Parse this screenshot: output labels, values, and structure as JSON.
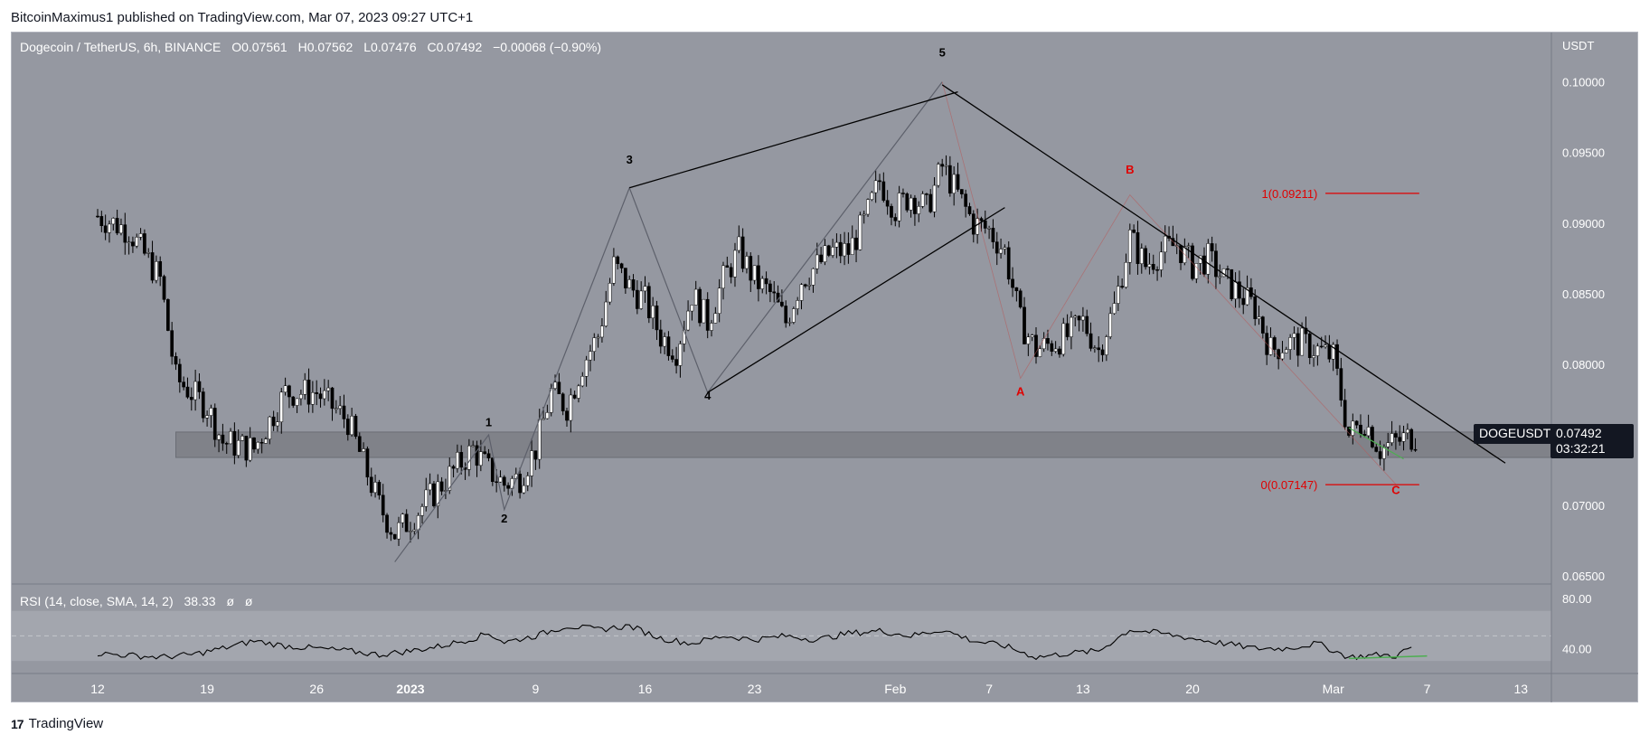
{
  "header": {
    "publisher_line": "BitcoinMaximus1 published on TradingView.com, Mar 07, 2023 09:27 UTC+1"
  },
  "legend": {
    "symbol": "Dogecoin / TetherUS, 6h, BINANCE",
    "o_label": "O",
    "o": "0.07561",
    "h_label": "H",
    "h": "0.07562",
    "l_label": "L",
    "l": "0.07476",
    "c_label": "C",
    "c": "0.07492",
    "change": "−0.00068 (−0.90%)"
  },
  "rsi_legend": {
    "label": "RSI (14, close, SMA, 14, 2)",
    "value": "38.33",
    "extra1": "ø",
    "extra2": "ø"
  },
  "price_tag": {
    "symbol": "DOGEUSDT",
    "price": "0.07492",
    "countdown": "03:32:21"
  },
  "footer": {
    "brand": "TradingView",
    "logo": "17"
  },
  "colors": {
    "background": "#9598a1",
    "bull": "#ffffff",
    "bear": "#000000",
    "red": "#e00000",
    "green": "#4caf50",
    "zone": "#808289"
  },
  "chart_data": {
    "type": "candlestick",
    "title": "Dogecoin / TetherUS, 6h, BINANCE",
    "y_axis_unit": "USDT",
    "ylim": [
      0.0645,
      0.1035
    ],
    "y_ticks": [
      "0.10000",
      "0.09500",
      "0.09000",
      "0.08500",
      "0.08000",
      "0.07500",
      "0.07000",
      "0.06500"
    ],
    "x_ticks": [
      {
        "label": "12",
        "day": -20
      },
      {
        "label": "19",
        "day": -13
      },
      {
        "label": "26",
        "day": -6
      },
      {
        "label": "2023",
        "day": 0
      },
      {
        "label": "9",
        "day": 8
      },
      {
        "label": "16",
        "day": 15
      },
      {
        "label": "23",
        "day": 22
      },
      {
        "label": "Feb",
        "day": 31
      },
      {
        "label": "7",
        "day": 37
      },
      {
        "label": "13",
        "day": 43
      },
      {
        "label": "20",
        "day": 50
      },
      {
        "label": "Mar",
        "day": 59
      },
      {
        "label": "7",
        "day": 65
      },
      {
        "label": "13",
        "day": 71
      }
    ],
    "price_path": [
      [
        -20,
        0.0905
      ],
      [
        -18,
        0.0895
      ],
      [
        -16,
        0.086
      ],
      [
        -15,
        0.079
      ],
      [
        -13,
        0.077
      ],
      [
        -12,
        0.0745
      ],
      [
        -10,
        0.074
      ],
      [
        -8,
        0.078
      ],
      [
        -6,
        0.078
      ],
      [
        -4,
        0.076
      ],
      [
        -3,
        0.073
      ],
      [
        -2,
        0.07
      ],
      [
        -1,
        0.068
      ],
      [
        0,
        0.069
      ],
      [
        2,
        0.0715
      ],
      [
        4,
        0.074
      ],
      [
        5,
        0.0725
      ],
      [
        6,
        0.0715
      ],
      [
        7,
        0.072
      ],
      [
        8,
        0.074
      ],
      [
        9,
        0.078
      ],
      [
        10,
        0.077
      ],
      [
        11,
        0.08
      ],
      [
        12,
        0.082
      ],
      [
        13,
        0.087
      ],
      [
        14,
        0.0855
      ],
      [
        15,
        0.0845
      ],
      [
        16,
        0.082
      ],
      [
        17,
        0.081
      ],
      [
        18,
        0.085
      ],
      [
        19,
        0.083
      ],
      [
        20,
        0.086
      ],
      [
        21,
        0.088
      ],
      [
        22,
        0.086
      ],
      [
        23,
        0.085
      ],
      [
        24,
        0.083
      ],
      [
        25,
        0.086
      ],
      [
        26,
        0.087
      ],
      [
        27,
        0.088
      ],
      [
        28,
        0.088
      ],
      [
        29,
        0.09
      ],
      [
        30,
        0.093
      ],
      [
        31,
        0.091
      ],
      [
        32,
        0.092
      ],
      [
        33,
        0.091
      ],
      [
        34,
        0.094
      ],
      [
        35,
        0.092
      ],
      [
        36,
        0.09
      ],
      [
        37,
        0.0895
      ],
      [
        38,
        0.088
      ],
      [
        39,
        0.083
      ],
      [
        40,
        0.081
      ],
      [
        41,
        0.0815
      ],
      [
        42,
        0.082
      ],
      [
        43,
        0.083
      ],
      [
        44,
        0.081
      ],
      [
        45,
        0.084
      ],
      [
        46,
        0.089
      ],
      [
        47,
        0.087
      ],
      [
        48,
        0.088
      ],
      [
        49,
        0.0885
      ],
      [
        50,
        0.087
      ],
      [
        51,
        0.0875
      ],
      [
        52,
        0.086
      ],
      [
        53,
        0.085
      ],
      [
        54,
        0.084
      ],
      [
        55,
        0.081
      ],
      [
        56,
        0.0815
      ],
      [
        57,
        0.0815
      ],
      [
        58,
        0.081
      ],
      [
        59,
        0.0805
      ],
      [
        60,
        0.075
      ],
      [
        61,
        0.076
      ],
      [
        62,
        0.074
      ],
      [
        63,
        0.0745
      ],
      [
        64,
        0.0749
      ]
    ],
    "wave_labels": [
      {
        "text": "1",
        "day": 5,
        "price": 0.0756,
        "color": "black"
      },
      {
        "text": "2",
        "day": 6,
        "price": 0.0688,
        "color": "black"
      },
      {
        "text": "3",
        "day": 14,
        "price": 0.0942,
        "color": "black"
      },
      {
        "text": "4",
        "day": 19,
        "price": 0.0775,
        "color": "black"
      },
      {
        "text": "5",
        "day": 34,
        "price": 0.1018,
        "color": "black"
      },
      {
        "text": "A",
        "day": 39,
        "price": 0.0778,
        "color": "red"
      },
      {
        "text": "B",
        "day": 46,
        "price": 0.0935,
        "color": "red"
      },
      {
        "text": "C",
        "day": 63,
        "price": 0.0708,
        "color": "red"
      }
    ],
    "wave_path": [
      [
        -1,
        0.066
      ],
      [
        5,
        0.075
      ],
      [
        6,
        0.0697
      ],
      [
        14,
        0.0925
      ],
      [
        19,
        0.078
      ],
      [
        34,
        0.1
      ],
      [
        39,
        0.079
      ],
      [
        46,
        0.092
      ],
      [
        63,
        0.0715
      ]
    ],
    "trendlines": [
      {
        "from": [
          14,
          0.0925
        ],
        "to": [
          35,
          0.0993
        ]
      },
      {
        "from": [
          19,
          0.078
        ],
        "to": [
          38,
          0.0911
        ]
      },
      {
        "from": [
          34,
          0.0998
        ],
        "to": [
          70,
          0.073
        ]
      }
    ],
    "support_zone": [
      0.0734,
      0.0752
    ],
    "fib_levels": [
      {
        "label": "1(0.09211)",
        "price": 0.09211
      },
      {
        "label": "0(0.07147)",
        "price": 0.07147
      }
    ],
    "rsi": {
      "ylim": [
        20,
        90
      ],
      "ticks": [
        "80.00",
        "40.00"
      ],
      "dashed_level": 50,
      "band": [
        30,
        70
      ],
      "values": [
        [
          -20,
          36
        ],
        [
          -16,
          33
        ],
        [
          -14,
          35
        ],
        [
          -12,
          40
        ],
        [
          -10,
          46
        ],
        [
          -8,
          42
        ],
        [
          -6,
          40
        ],
        [
          -4,
          38
        ],
        [
          -2,
          35
        ],
        [
          0,
          38
        ],
        [
          2,
          42
        ],
        [
          4,
          48
        ],
        [
          5,
          52
        ],
        [
          6,
          45
        ],
        [
          8,
          50
        ],
        [
          10,
          58
        ],
        [
          12,
          55
        ],
        [
          14,
          58
        ],
        [
          16,
          48
        ],
        [
          18,
          44
        ],
        [
          20,
          50
        ],
        [
          22,
          47
        ],
        [
          24,
          50
        ],
        [
          26,
          47
        ],
        [
          28,
          52
        ],
        [
          30,
          54
        ],
        [
          32,
          50
        ],
        [
          34,
          55
        ],
        [
          36,
          46
        ],
        [
          38,
          42
        ],
        [
          40,
          33
        ],
        [
          42,
          36
        ],
        [
          44,
          38
        ],
        [
          46,
          55
        ],
        [
          48,
          52
        ],
        [
          50,
          48
        ],
        [
          52,
          44
        ],
        [
          54,
          40
        ],
        [
          56,
          40
        ],
        [
          58,
          44
        ],
        [
          60,
          33
        ],
        [
          62,
          35
        ],
        [
          63,
          34
        ],
        [
          64,
          41
        ]
      ],
      "divergence_line": [
        [
          60,
          32
        ],
        [
          65,
          34
        ]
      ]
    }
  }
}
